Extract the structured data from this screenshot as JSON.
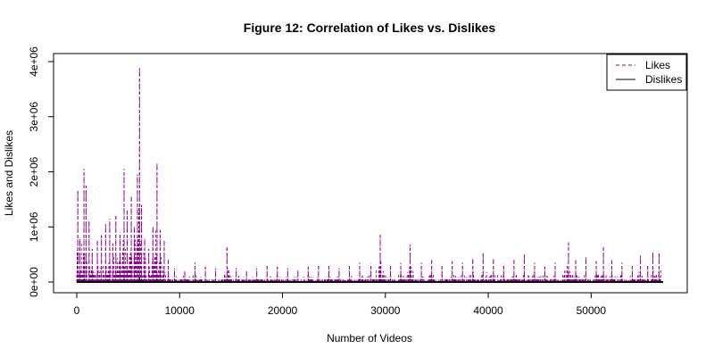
{
  "chart_data": {
    "type": "line",
    "title": "Figure 12: Correlation of Likes vs. Dislikes",
    "xlabel": "Number of Videos",
    "ylabel": "Likes and Dislikes",
    "xlim": [
      0,
      57000
    ],
    "ylim": [
      0,
      4000000
    ],
    "x_ticks": [
      0,
      10000,
      20000,
      30000,
      40000,
      50000
    ],
    "x_tick_labels": [
      "0",
      "10000",
      "20000",
      "30000",
      "40000",
      "50000"
    ],
    "y_ticks": [
      0,
      1000000,
      2000000,
      3000000,
      4000000
    ],
    "y_tick_labels": [
      "0e+00",
      "1e+06",
      "2e+06",
      "3e+06",
      "4e+06"
    ],
    "grid": false,
    "legend_position": "top-right",
    "series": [
      {
        "name": "Likes",
        "color": "#8b008b",
        "style": "dashed",
        "peaks": [
          [
            100,
            1650000
          ],
          [
            300,
            800000
          ],
          [
            700,
            2050000
          ],
          [
            900,
            1750000
          ],
          [
            1200,
            1100000
          ],
          [
            1500,
            600000
          ],
          [
            2000,
            750000
          ],
          [
            2400,
            850000
          ],
          [
            2800,
            1050000
          ],
          [
            3200,
            1150000
          ],
          [
            3500,
            700000
          ],
          [
            3800,
            1200000
          ],
          [
            4200,
            900000
          ],
          [
            4600,
            2050000
          ],
          [
            4900,
            1300000
          ],
          [
            5300,
            1550000
          ],
          [
            5600,
            1000000
          ],
          [
            5900,
            1950000
          ],
          [
            6100,
            3880000
          ],
          [
            6300,
            1400000
          ],
          [
            6600,
            800000
          ],
          [
            7000,
            600000
          ],
          [
            7400,
            1000000
          ],
          [
            7800,
            2150000
          ],
          [
            8100,
            950000
          ],
          [
            8500,
            750000
          ],
          [
            8900,
            400000
          ],
          [
            9500,
            250000
          ],
          [
            10500,
            200000
          ],
          [
            11500,
            350000
          ],
          [
            12500,
            280000
          ],
          [
            13500,
            250000
          ],
          [
            14600,
            650000
          ],
          [
            15500,
            250000
          ],
          [
            16500,
            200000
          ],
          [
            17500,
            250000
          ],
          [
            18500,
            300000
          ],
          [
            19500,
            280000
          ],
          [
            20500,
            250000
          ],
          [
            21500,
            220000
          ],
          [
            22500,
            280000
          ],
          [
            23500,
            300000
          ],
          [
            24500,
            320000
          ],
          [
            25500,
            250000
          ],
          [
            26500,
            300000
          ],
          [
            27500,
            350000
          ],
          [
            28600,
            330000
          ],
          [
            29500,
            890000
          ],
          [
            30500,
            300000
          ],
          [
            31500,
            350000
          ],
          [
            32400,
            680000
          ],
          [
            33500,
            350000
          ],
          [
            34500,
            400000
          ],
          [
            35500,
            300000
          ],
          [
            36500,
            380000
          ],
          [
            37500,
            350000
          ],
          [
            38500,
            420000
          ],
          [
            39500,
            520000
          ],
          [
            40500,
            420000
          ],
          [
            41500,
            330000
          ],
          [
            42500,
            400000
          ],
          [
            43500,
            500000
          ],
          [
            44500,
            350000
          ],
          [
            45500,
            280000
          ],
          [
            46500,
            350000
          ],
          [
            47800,
            720000
          ],
          [
            48500,
            400000
          ],
          [
            49500,
            450000
          ],
          [
            50500,
            380000
          ],
          [
            51200,
            640000
          ],
          [
            52000,
            400000
          ],
          [
            53000,
            350000
          ],
          [
            54000,
            300000
          ],
          [
            54800,
            480000
          ],
          [
            55500,
            300000
          ],
          [
            56000,
            550000
          ],
          [
            56600,
            520000
          ]
        ]
      },
      {
        "name": "Dislikes",
        "color": "#000000",
        "style": "solid",
        "peaks": [
          [
            100,
            40000
          ],
          [
            700,
            60000
          ],
          [
            3000,
            50000
          ],
          [
            4600,
            70000
          ],
          [
            6100,
            90000
          ],
          [
            7800,
            60000
          ],
          [
            10000,
            20000
          ],
          [
            20000,
            25000
          ],
          [
            29500,
            45000
          ],
          [
            40000,
            30000
          ],
          [
            47800,
            35000
          ],
          [
            56600,
            25000
          ]
        ]
      }
    ]
  }
}
